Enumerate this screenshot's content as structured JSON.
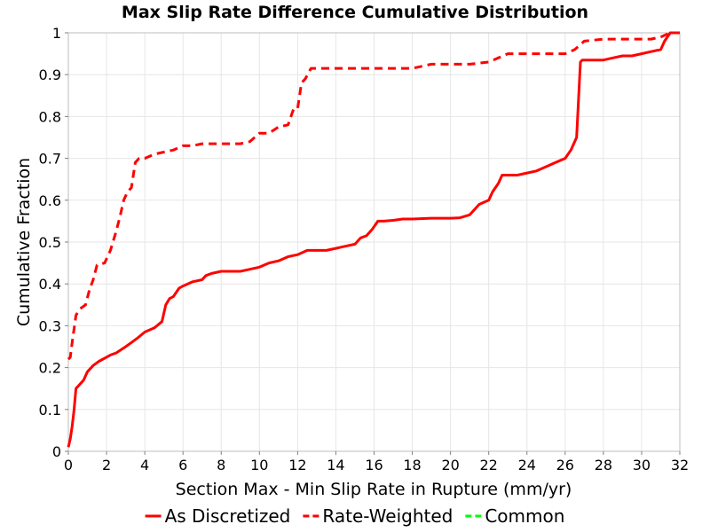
{
  "chart_data": {
    "type": "line",
    "title": "Max Slip Rate Difference Cumulative Distribution",
    "xlabel": "Section Max - Min Slip Rate in Rupture (mm/yr)",
    "ylabel": "Cumulative Fraction",
    "xlim": [
      0,
      32
    ],
    "ylim": [
      0,
      1
    ],
    "x_ticks": [
      "0",
      "2",
      "4",
      "6",
      "8",
      "10",
      "12",
      "14",
      "16",
      "18",
      "20",
      "22",
      "24",
      "26",
      "28",
      "30",
      "32"
    ],
    "y_ticks": [
      "0",
      "0.1",
      "0.2",
      "0.3",
      "0.4",
      "0.5",
      "0.6",
      "0.7",
      "0.8",
      "0.9",
      "1"
    ],
    "grid": true,
    "legend_position": "bottom",
    "series": [
      {
        "name": "As Discretized",
        "color": "#ff0000",
        "dash": "solid",
        "x": [
          0,
          0.1,
          0.2,
          0.3,
          0.4,
          0.5,
          0.8,
          1,
          1.3,
          1.6,
          2,
          2.2,
          2.5,
          3,
          3.3,
          3.6,
          4,
          4.5,
          4.9,
          5.1,
          5.3,
          5.5,
          5.8,
          6,
          6.5,
          7,
          7.2,
          7.5,
          8,
          9,
          9.5,
          10,
          10.5,
          11,
          11.5,
          12,
          12.5,
          13,
          13.5,
          14,
          14.5,
          15,
          15.3,
          15.6,
          15.9,
          16.2,
          16.5,
          17,
          17.5,
          18,
          19,
          20,
          20.5,
          21,
          21.2,
          21.5,
          22,
          22.2,
          22.5,
          22.7,
          23,
          23.5,
          24,
          24.5,
          25,
          25.5,
          26,
          26.3,
          26.6,
          26.8,
          26.9,
          27.0,
          27.2,
          27.5,
          28,
          28.5,
          29,
          29.5,
          30,
          30.5,
          31,
          31.2,
          31.5,
          32
        ],
        "y": [
          0.01,
          0.03,
          0.06,
          0.1,
          0.15,
          0.155,
          0.17,
          0.19,
          0.205,
          0.215,
          0.225,
          0.23,
          0.235,
          0.25,
          0.26,
          0.27,
          0.285,
          0.295,
          0.31,
          0.35,
          0.365,
          0.37,
          0.39,
          0.395,
          0.405,
          0.41,
          0.42,
          0.425,
          0.43,
          0.43,
          0.435,
          0.44,
          0.45,
          0.455,
          0.465,
          0.47,
          0.48,
          0.48,
          0.48,
          0.485,
          0.49,
          0.495,
          0.51,
          0.515,
          0.53,
          0.55,
          0.55,
          0.552,
          0.555,
          0.555,
          0.557,
          0.557,
          0.558,
          0.565,
          0.575,
          0.59,
          0.6,
          0.62,
          0.64,
          0.66,
          0.66,
          0.66,
          0.665,
          0.67,
          0.68,
          0.69,
          0.7,
          0.72,
          0.75,
          0.93,
          0.935,
          0.935,
          0.935,
          0.935,
          0.935,
          0.94,
          0.945,
          0.945,
          0.95,
          0.955,
          0.96,
          0.98,
          1.0,
          1.0
        ]
      },
      {
        "name": "Rate-Weighted",
        "color": "#ff0000",
        "dash": "dashed",
        "x": [
          0,
          0.1,
          0.2,
          0.4,
          0.6,
          0.9,
          1.1,
          1.3,
          1.5,
          1.9,
          2.2,
          2.5,
          2.7,
          2.9,
          3.1,
          3.3,
          3.5,
          3.7,
          4,
          4.5,
          5,
          5.5,
          6,
          6.5,
          7,
          8,
          9,
          9.5,
          10,
          10.5,
          11,
          11.5,
          11.8,
          12,
          12.2,
          12.4,
          12.7,
          13,
          14,
          15,
          16,
          17,
          18,
          18.5,
          19,
          20,
          21,
          22,
          22.5,
          23,
          24,
          25,
          26,
          26.5,
          27,
          28,
          29,
          30,
          30.5,
          31,
          31.5,
          32
        ],
        "y": [
          0.22,
          0.225,
          0.26,
          0.325,
          0.34,
          0.35,
          0.385,
          0.41,
          0.445,
          0.45,
          0.48,
          0.525,
          0.56,
          0.6,
          0.62,
          0.63,
          0.69,
          0.7,
          0.7,
          0.71,
          0.715,
          0.72,
          0.73,
          0.73,
          0.735,
          0.735,
          0.735,
          0.74,
          0.76,
          0.76,
          0.775,
          0.78,
          0.82,
          0.82,
          0.88,
          0.89,
          0.915,
          0.915,
          0.915,
          0.915,
          0.915,
          0.915,
          0.915,
          0.92,
          0.925,
          0.925,
          0.925,
          0.93,
          0.94,
          0.95,
          0.95,
          0.95,
          0.95,
          0.96,
          0.98,
          0.985,
          0.985,
          0.985,
          0.985,
          0.99,
          1.0,
          1.0
        ]
      }
    ],
    "legend": [
      {
        "label": "As Discretized",
        "color": "#ff0000",
        "dash": "solid"
      },
      {
        "label": "Rate-Weighted",
        "color": "#ff0000",
        "dash": "dashed"
      },
      {
        "label": "Common",
        "color": "#00ff00",
        "dash": "dashed"
      }
    ]
  }
}
